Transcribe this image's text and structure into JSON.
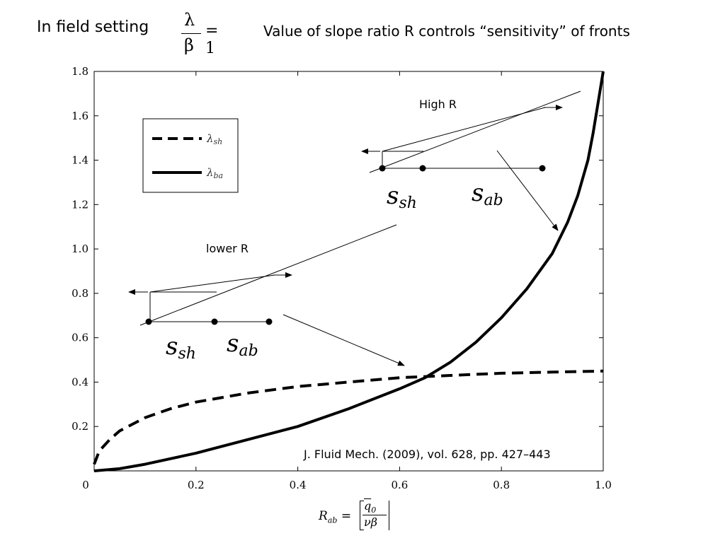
{
  "header": {
    "title": "In field setting",
    "formula_num": "λ",
    "formula_den": "β",
    "formula_rhs": "= 1",
    "subtitle": "Value of slope ratio R controls “sensitivity” of fronts"
  },
  "chart_data": {
    "type": "line",
    "xlim": [
      0,
      1.0
    ],
    "ylim": [
      0,
      1.8
    ],
    "x_ticks": [
      "0",
      "0.2",
      "0.4",
      "0.6",
      "0.8",
      "1.0"
    ],
    "y_ticks": [
      "0.2",
      "0.4",
      "0.6",
      "0.8",
      "1.0",
      "1.2",
      "1.4",
      "1.6",
      "1.8"
    ],
    "xlabel": {
      "lhs": "R",
      "lhs_sub": "ab",
      "num": "q",
      "num_sub": "0",
      "den": "νβ"
    },
    "legend": {
      "placement": "top-left",
      "entries": [
        "λsh",
        "λba"
      ]
    },
    "series": [
      {
        "name": "λsh",
        "style": "dashed",
        "x": [
          0.0,
          0.01,
          0.03,
          0.05,
          0.1,
          0.15,
          0.2,
          0.3,
          0.4,
          0.5,
          0.6,
          0.7,
          0.8,
          0.9,
          1.0
        ],
        "y": [
          0.03,
          0.09,
          0.14,
          0.18,
          0.24,
          0.28,
          0.31,
          0.35,
          0.38,
          0.4,
          0.42,
          0.43,
          0.44,
          0.445,
          0.45
        ]
      },
      {
        "name": "λba",
        "style": "solid",
        "x": [
          0.0,
          0.05,
          0.1,
          0.2,
          0.3,
          0.4,
          0.5,
          0.6,
          0.65,
          0.7,
          0.75,
          0.8,
          0.85,
          0.9,
          0.93,
          0.95,
          0.97,
          0.98,
          0.99,
          1.0
        ],
        "y": [
          0.0,
          0.01,
          0.03,
          0.08,
          0.14,
          0.2,
          0.28,
          0.37,
          0.42,
          0.49,
          0.58,
          0.69,
          0.82,
          0.98,
          1.12,
          1.24,
          1.4,
          1.52,
          1.66,
          1.8
        ]
      }
    ],
    "annotations": {
      "high_r": "High R",
      "lower_r": "lower R",
      "s_sh": "s",
      "s_sh_sub": "sh",
      "s_ab": "s",
      "s_ab_sub": "ab",
      "citation": "J. Fluid Mech. (2009), vol. 628, pp. 427–443"
    }
  }
}
